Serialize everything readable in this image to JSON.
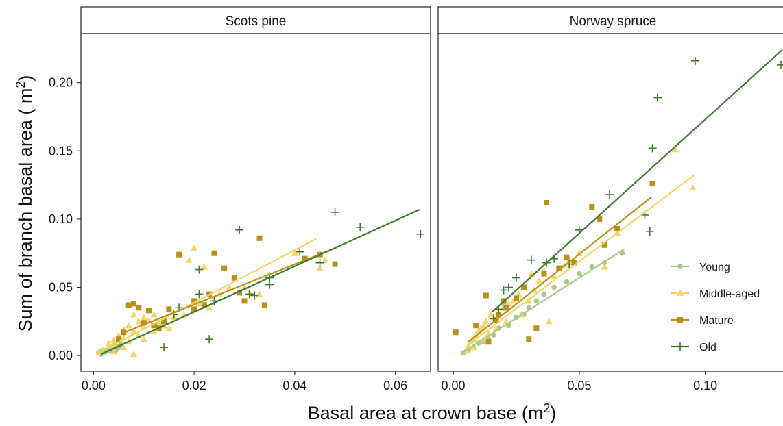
{
  "chart_data": {
    "type": "scatter",
    "ylabel": {
      "text": "Sum of branch basal area (  m",
      "sup": "2",
      "close": ")"
    },
    "xlabel": {
      "text": "Basal area at crown base (m",
      "sup": "2",
      "close": ")"
    },
    "y_ticks": [
      {
        "value": 0.0,
        "label": "0.00"
      },
      {
        "value": 0.05,
        "label": "0.05"
      },
      {
        "value": 0.1,
        "label": "0.10"
      },
      {
        "value": 0.15,
        "label": "0.15"
      },
      {
        "value": 0.2,
        "label": "0.20"
      }
    ],
    "ylim": [
      -0.0115,
      0.236
    ],
    "grid": false,
    "legend_position": "bottom-right inside Norway spruce panel",
    "series_styles": [
      {
        "name": "Young",
        "color": "#a9c98b",
        "marker": "circle"
      },
      {
        "name": "Middle-aged",
        "color": "#f5d468",
        "marker": "triangle"
      },
      {
        "name": "Mature",
        "color": "#b8901c",
        "marker": "square"
      },
      {
        "name": "Old",
        "color": "#3d7a2f",
        "marker": "plus"
      }
    ],
    "panels": [
      {
        "title": "Scots pine",
        "xlim": [
          -0.0025,
          0.067
        ],
        "x_ticks": [
          {
            "value": 0.0,
            "label": "0.00"
          },
          {
            "value": 0.02,
            "label": "0.02"
          },
          {
            "value": 0.04,
            "label": "0.04"
          },
          {
            "value": 0.06,
            "label": "0.06"
          }
        ],
        "series": [
          {
            "name": "Young",
            "points": [
              [
                0.001,
                0.002
              ],
              [
                0.0015,
                0.003
              ],
              [
                0.002,
                0.004
              ],
              [
                0.0025,
                0.003
              ],
              [
                0.003,
                0.005
              ],
              [
                0.003,
                0.004
              ],
              [
                0.0035,
                0.006
              ],
              [
                0.004,
                0.005
              ],
              [
                0.0045,
                0.007
              ],
              [
                0.005,
                0.006
              ],
              [
                0.002,
                0.002
              ],
              [
                0.0055,
                0.008
              ],
              [
                0.0015,
                0.001
              ],
              [
                0.0035,
                0.003
              ],
              [
                0.0045,
                0.004
              ]
            ],
            "fit": [
              [
                0.001,
                0.0015
              ],
              [
                0.007,
                0.01
              ]
            ]
          },
          {
            "name": "Middle-aged",
            "points": [
              [
                0.001,
                0.002
              ],
              [
                0.002,
                0.004
              ],
              [
                0.003,
                0.006
              ],
              [
                0.003,
                0.009
              ],
              [
                0.004,
                0.008
              ],
              [
                0.004,
                0.011
              ],
              [
                0.005,
                0.012
              ],
              [
                0.005,
                0.015
              ],
              [
                0.006,
                0.013
              ],
              [
                0.006,
                0.019
              ],
              [
                0.007,
                0.01
              ],
              [
                0.007,
                0.022
              ],
              [
                0.008,
                0.018
              ],
              [
                0.008,
                0.03
              ],
              [
                0.009,
                0.025
              ],
              [
                0.009,
                0.015
              ],
              [
                0.01,
                0.028
              ],
              [
                0.01,
                0.021
              ],
              [
                0.011,
                0.026
              ],
              [
                0.011,
                0.033
              ],
              [
                0.012,
                0.018
              ],
              [
                0.012,
                0.03
              ],
              [
                0.013,
                0.024
              ],
              [
                0.014,
                0.022
              ],
              [
                0.015,
                0.02
              ],
              [
                0.016,
                0.028
              ],
              [
                0.018,
                0.03
              ],
              [
                0.019,
                0.07
              ],
              [
                0.02,
                0.079
              ],
              [
                0.021,
                0.038
              ],
              [
                0.022,
                0.065
              ],
              [
                0.023,
                0.035
              ],
              [
                0.025,
                0.045
              ],
              [
                0.027,
                0.05
              ],
              [
                0.028,
                0.056
              ],
              [
                0.03,
                0.05
              ],
              [
                0.031,
                0.046
              ],
              [
                0.033,
                0.045
              ],
              [
                0.04,
                0.075
              ],
              [
                0.045,
                0.064
              ],
              [
                0.046,
                0.07
              ],
              [
                0.008,
                0.001
              ],
              [
                0.01,
                0.012
              ],
              [
                0.006,
                0.006
              ],
              [
                0.004,
                0.003
              ]
            ],
            "fit": [
              [
                0.001,
                0.002
              ],
              [
                0.0445,
                0.086
              ]
            ]
          },
          {
            "name": "Mature",
            "points": [
              [
                0.005,
                0.012
              ],
              [
                0.006,
                0.017
              ],
              [
                0.007,
                0.037
              ],
              [
                0.008,
                0.038
              ],
              [
                0.009,
                0.035
              ],
              [
                0.01,
                0.024
              ],
              [
                0.011,
                0.033
              ],
              [
                0.012,
                0.022
              ],
              [
                0.013,
                0.02
              ],
              [
                0.014,
                0.025
              ],
              [
                0.015,
                0.034
              ],
              [
                0.017,
                0.074
              ],
              [
                0.02,
                0.04
              ],
              [
                0.02,
                0.034
              ],
              [
                0.022,
                0.037
              ],
              [
                0.023,
                0.045
              ],
              [
                0.024,
                0.075
              ],
              [
                0.026,
                0.064
              ],
              [
                0.028,
                0.057
              ],
              [
                0.029,
                0.046
              ],
              [
                0.03,
                0.04
              ],
              [
                0.033,
                0.086
              ],
              [
                0.034,
                0.037
              ],
              [
                0.042,
                0.071
              ],
              [
                0.045,
                0.074
              ],
              [
                0.048,
                0.067
              ]
            ],
            "fit": [
              [
                0.0055,
                0.016
              ],
              [
                0.0482,
                0.079
              ]
            ]
          },
          {
            "name": "Old",
            "points": [
              [
                0.014,
                0.006
              ],
              [
                0.016,
                0.03
              ],
              [
                0.017,
                0.035
              ],
              [
                0.021,
                0.063
              ],
              [
                0.021,
                0.045
              ],
              [
                0.023,
                0.012
              ],
              [
                0.024,
                0.04
              ],
              [
                0.029,
                0.092
              ],
              [
                0.031,
                0.045
              ],
              [
                0.032,
                0.044
              ],
              [
                0.035,
                0.057
              ],
              [
                0.035,
                0.052
              ],
              [
                0.041,
                0.076
              ],
              [
                0.045,
                0.068
              ],
              [
                0.048,
                0.105
              ],
              [
                0.053,
                0.094
              ],
              [
                0.065,
                0.089
              ]
            ],
            "fit": [
              [
                0.0015,
                0.001
              ],
              [
                0.0648,
                0.107
              ]
            ]
          }
        ]
      },
      {
        "title": "Norway spruce",
        "xlim": [
          -0.006,
          0.133
        ],
        "x_ticks": [
          {
            "value": 0.0,
            "label": "0.00"
          },
          {
            "value": 0.05,
            "label": "0.05"
          },
          {
            "value": 0.1,
            "label": "0.10"
          }
        ],
        "series": [
          {
            "name": "Young",
            "points": [
              [
                0.004,
                0.002
              ],
              [
                0.006,
                0.004
              ],
              [
                0.008,
                0.006
              ],
              [
                0.01,
                0.009
              ],
              [
                0.012,
                0.01
              ],
              [
                0.014,
                0.012
              ],
              [
                0.016,
                0.015
              ],
              [
                0.018,
                0.02
              ],
              [
                0.02,
                0.038
              ],
              [
                0.022,
                0.022
              ],
              [
                0.025,
                0.028
              ],
              [
                0.028,
                0.03
              ],
              [
                0.03,
                0.035
              ],
              [
                0.033,
                0.04
              ],
              [
                0.036,
                0.045
              ],
              [
                0.04,
                0.05
              ],
              [
                0.045,
                0.054
              ],
              [
                0.05,
                0.06
              ],
              [
                0.055,
                0.065
              ],
              [
                0.06,
                0.068
              ],
              [
                0.067,
                0.075
              ]
            ],
            "fit": [
              [
                0.0035,
                0.002
              ],
              [
                0.0678,
                0.078
              ]
            ]
          },
          {
            "name": "Middle-aged",
            "points": [
              [
                0.005,
                0.004
              ],
              [
                0.006,
                0.007
              ],
              [
                0.007,
                0.01
              ],
              [
                0.008,
                0.012
              ],
              [
                0.009,
                0.015
              ],
              [
                0.01,
                0.018
              ],
              [
                0.011,
                0.02
              ],
              [
                0.012,
                0.022
              ],
              [
                0.013,
                0.025
              ],
              [
                0.014,
                0.016
              ],
              [
                0.015,
                0.03
              ],
              [
                0.016,
                0.028
              ],
              [
                0.018,
                0.032
              ],
              [
                0.02,
                0.035
              ],
              [
                0.022,
                0.038
              ],
              [
                0.024,
                0.04
              ],
              [
                0.026,
                0.045
              ],
              [
                0.028,
                0.05
              ],
              [
                0.03,
                0.04
              ],
              [
                0.031,
                0.06
              ],
              [
                0.032,
                0.048
              ],
              [
                0.034,
                0.055
              ],
              [
                0.036,
                0.062
              ],
              [
                0.038,
                0.025
              ],
              [
                0.04,
                0.058
              ],
              [
                0.042,
                0.064
              ],
              [
                0.044,
                0.066
              ],
              [
                0.046,
                0.07
              ],
              [
                0.05,
                0.075
              ],
              [
                0.06,
                0.065
              ],
              [
                0.065,
                0.09
              ],
              [
                0.088,
                0.151
              ],
              [
                0.095,
                0.123
              ],
              [
                0.012,
                0.012
              ],
              [
                0.008,
                0.006
              ],
              [
                0.017,
                0.02
              ],
              [
                0.021,
                0.025
              ],
              [
                0.027,
                0.03
              ]
            ],
            "fit": [
              [
                0.006,
                0.008
              ],
              [
                0.0955,
                0.132
              ]
            ]
          },
          {
            "name": "Mature",
            "points": [
              [
                0.001,
                0.017
              ],
              [
                0.009,
                0.022
              ],
              [
                0.013,
                0.044
              ],
              [
                0.014,
                0.01
              ],
              [
                0.017,
                0.026
              ],
              [
                0.018,
                0.03
              ],
              [
                0.021,
                0.035
              ],
              [
                0.025,
                0.042
              ],
              [
                0.03,
                0.012
              ],
              [
                0.033,
                0.02
              ],
              [
                0.036,
                0.06
              ],
              [
                0.037,
                0.112
              ],
              [
                0.042,
                0.064
              ],
              [
                0.045,
                0.072
              ],
              [
                0.048,
                0.068
              ],
              [
                0.055,
                0.109
              ],
              [
                0.058,
                0.1
              ],
              [
                0.06,
                0.081
              ],
              [
                0.065,
                0.093
              ],
              [
                0.079,
                0.126
              ],
              [
                0.02,
                0.04
              ],
              [
                0.028,
                0.05
              ]
            ],
            "fit": [
              [
                0.006,
                0.01
              ],
              [
                0.0785,
                0.116
              ]
            ]
          },
          {
            "name": "Old",
            "points": [
              [
                0.016,
                0.027
              ],
              [
                0.018,
                0.034
              ],
              [
                0.02,
                0.048
              ],
              [
                0.022,
                0.05
              ],
              [
                0.025,
                0.057
              ],
              [
                0.031,
                0.07
              ],
              [
                0.037,
                0.068
              ],
              [
                0.04,
                0.071
              ],
              [
                0.046,
                0.067
              ],
              [
                0.05,
                0.092
              ],
              [
                0.062,
                0.118
              ],
              [
                0.076,
                0.103
              ],
              [
                0.078,
                0.091
              ],
              [
                0.079,
                0.152
              ],
              [
                0.081,
                0.189
              ],
              [
                0.096,
                0.216
              ],
              [
                0.13,
                0.213
              ]
            ],
            "fit": [
              [
                0.0155,
                0.032
              ],
              [
                0.1305,
                0.224
              ]
            ]
          }
        ]
      }
    ]
  }
}
